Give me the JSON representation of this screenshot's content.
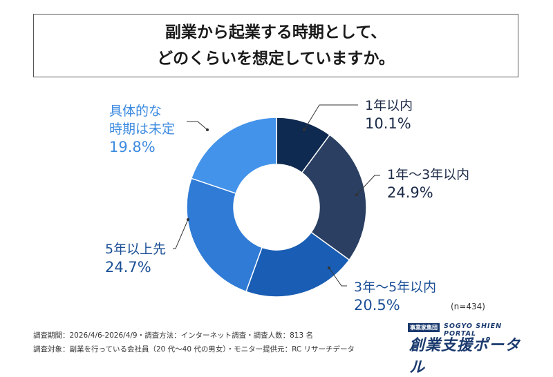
{
  "title": {
    "line1": "副業から起業する時期として、",
    "line2": "どのくらいを想定していますか。"
  },
  "chart_data": {
    "type": "pie",
    "subtype": "donut",
    "n_note": "(n=434)",
    "slices": [
      {
        "name_lines": [
          "1年以内"
        ],
        "value": 10.1,
        "value_label": "10.1%",
        "color": "#0f2a50"
      },
      {
        "name_lines": [
          "1年〜3年以内"
        ],
        "value": 24.9,
        "value_label": "24.9%",
        "color": "#2a3f62"
      },
      {
        "name_lines": [
          "3年〜5年以内"
        ],
        "value": 20.5,
        "value_label": "20.5%",
        "color": "#1a5db4"
      },
      {
        "name_lines": [
          "5年以上先"
        ],
        "value": 24.7,
        "value_label": "24.7%",
        "color": "#2f7bd6"
      },
      {
        "name_lines": [
          "具体的な",
          "時期は未定"
        ],
        "value": 19.8,
        "value_label": "19.8%",
        "color": "#4393ea"
      }
    ]
  },
  "footer": {
    "line1": "調査期間：2026/4/6-2026/4/9・調査方法：インターネット調査・調査人数：813 名",
    "line2": "調査対象：副業を行っている会社員（20 代〜40 代の男女）・モニター提供元：RC リサーチデータ"
  },
  "logo": {
    "tag": "事業家集団",
    "en": "SOGYO SHIEN PORTAL",
    "jp": "創業支援ポータル"
  }
}
